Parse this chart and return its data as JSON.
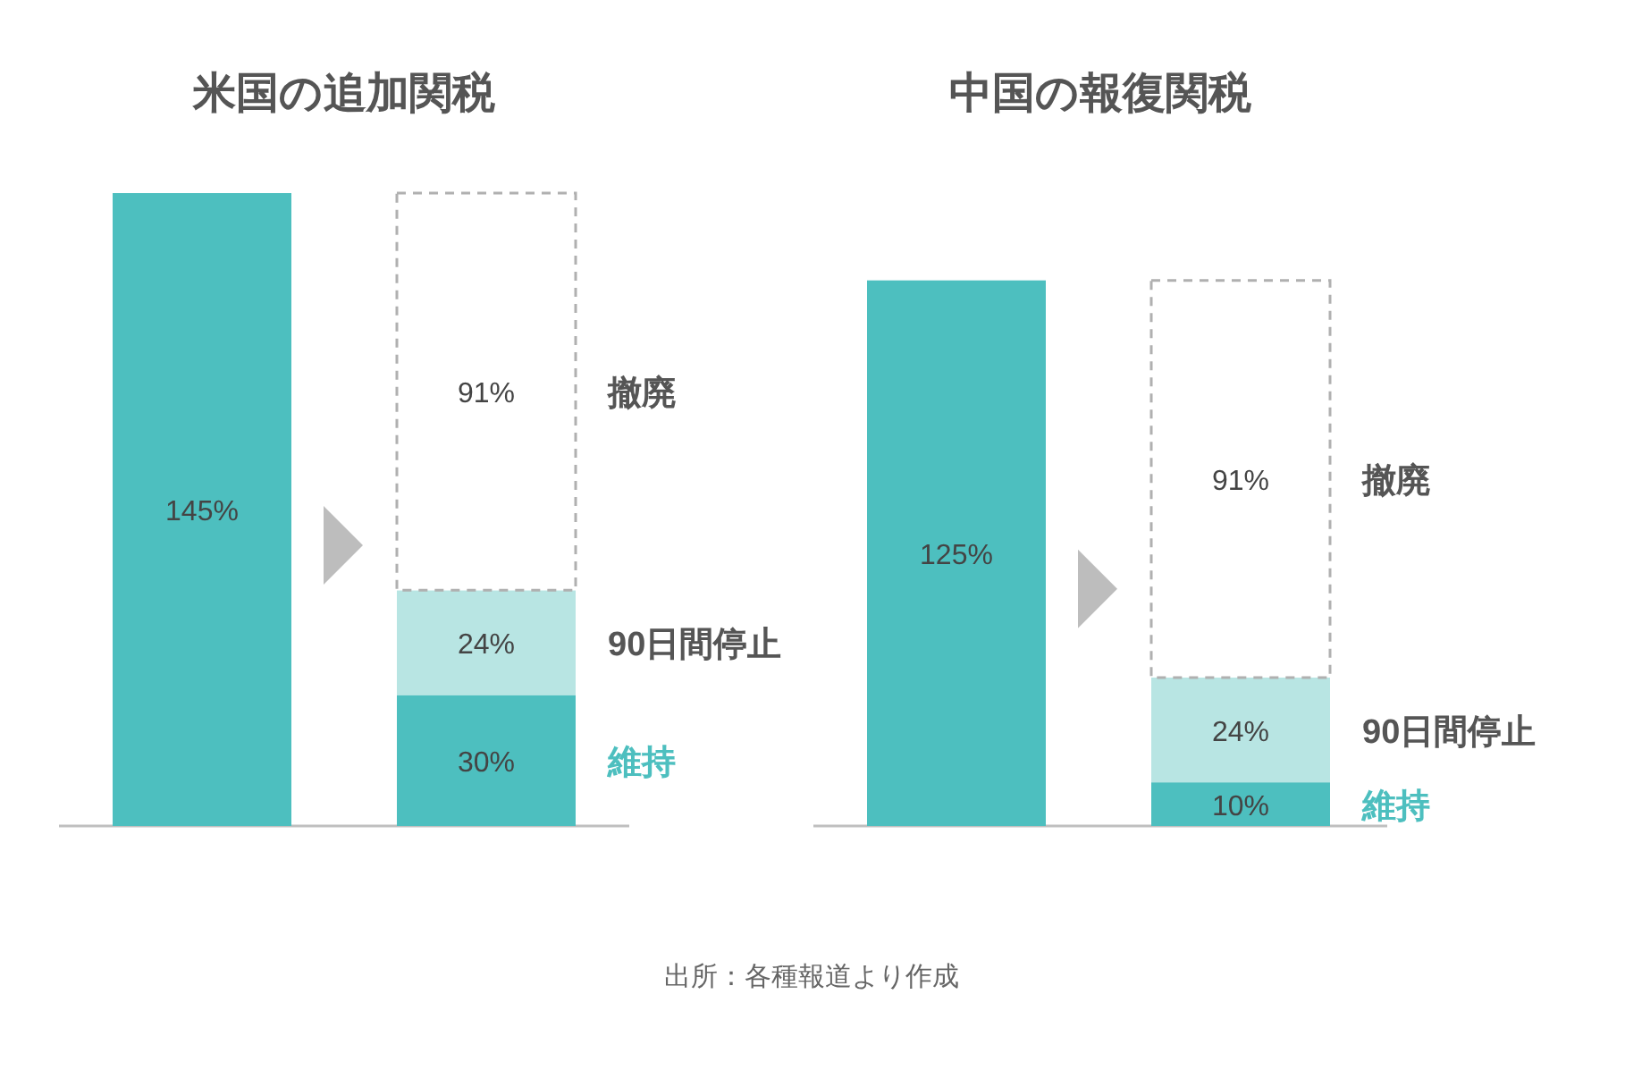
{
  "chart_data": [
    {
      "type": "bar",
      "title": "米国の追加関税",
      "stacked": true,
      "categories": [
        null,
        null
      ],
      "series": [
        {
          "color": "#4dbfbf",
          "values": [
            145,
            null
          ],
          "value_labels": [
            "145%",
            null
          ]
        },
        {
          "name": "維持",
          "color": "#4dbfbf",
          "values": [
            null,
            30
          ],
          "value_labels": [
            null,
            "30%"
          ]
        },
        {
          "name": "90日間停止",
          "color": "#b8e5e3",
          "values": [
            null,
            24
          ],
          "value_labels": [
            null,
            "24%"
          ]
        },
        {
          "name": "撤廃",
          "color": "#ffffff",
          "line_style": "dashed",
          "values": [
            null,
            91
          ],
          "value_labels": [
            null,
            "91%"
          ]
        }
      ],
      "annotations": [
        "出所：各種報道より作成"
      ]
    },
    {
      "type": "bar",
      "title": "中国の報復関税",
      "stacked": true,
      "categories": [
        null,
        null
      ],
      "series": [
        {
          "color": "#4dbfbf",
          "values": [
            125,
            null
          ],
          "value_labels": [
            "125%",
            null
          ]
        },
        {
          "name": "維持",
          "color": "#4dbfbf",
          "values": [
            null,
            10
          ],
          "value_labels": [
            null,
            "10%"
          ]
        },
        {
          "name": "90日間停止",
          "color": "#b8e5e3",
          "values": [
            null,
            24
          ],
          "value_labels": [
            null,
            "24%"
          ]
        },
        {
          "name": "撤廃",
          "color": "#ffffff",
          "line_style": "dashed",
          "values": [
            null,
            91
          ],
          "value_labels": [
            null,
            "91%"
          ]
        }
      ]
    }
  ]
}
